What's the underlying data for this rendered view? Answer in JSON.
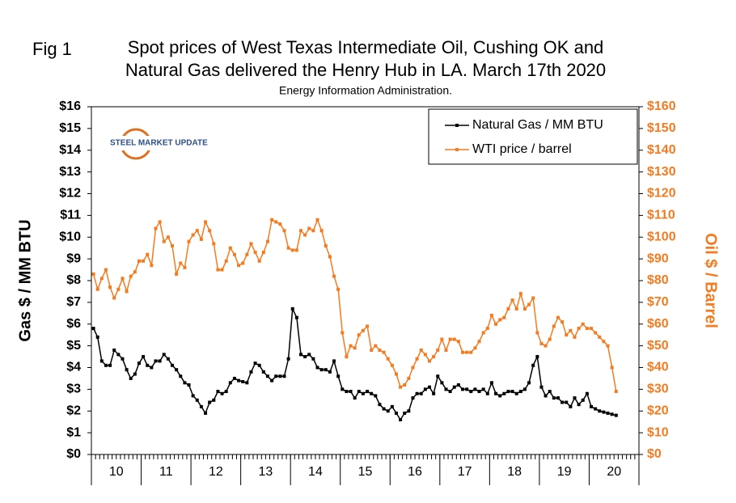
{
  "chart_data": {
    "type": "line",
    "figure_label": "Fig 1",
    "title": [
      "Spot prices of West Texas Intermediate Oil, Cushing OK and",
      "Natural Gas delivered the Henry Hub in LA. March 17th 2020"
    ],
    "subtitle": "Energy Information Administration.",
    "logo": "STEEL MARKET UPDATE",
    "y_label": "Gas $ / MM BTU",
    "y2_label": "Oil $ / Barrel",
    "categories": [
      null,
      null,
      null,
      null,
      null,
      null,
      "10",
      null,
      null,
      null,
      null,
      null,
      null,
      null,
      null,
      null,
      null,
      null,
      "11",
      null,
      null,
      null,
      null,
      null,
      null,
      null,
      null,
      null,
      null,
      null,
      "12",
      null,
      null,
      null,
      null,
      null,
      null,
      null,
      null,
      null,
      null,
      null,
      "13",
      null,
      null,
      null,
      null,
      null,
      null,
      null,
      null,
      null,
      null,
      null,
      "14",
      null,
      null,
      null,
      null,
      null,
      null,
      null,
      null,
      null,
      null,
      null,
      "15",
      null,
      null,
      null,
      null,
      null,
      null,
      null,
      null,
      null,
      null,
      null,
      "16",
      null,
      null,
      null,
      null,
      null,
      null,
      null,
      null,
      null,
      null,
      null,
      "17",
      null,
      null,
      null,
      null,
      null,
      null,
      null,
      null,
      null,
      null,
      null,
      "18",
      null,
      null,
      null,
      null,
      null,
      null,
      null,
      null,
      null,
      null,
      null,
      "19",
      null,
      null,
      null,
      null,
      null,
      null,
      null,
      null,
      null,
      null,
      null,
      "20"
    ],
    "series": [
      {
        "name": "Natural Gas / MM BTU",
        "color": "#000000",
        "axis": "y",
        "values": [
          5.8,
          5.4,
          4.3,
          4.1,
          4.1,
          4.8,
          4.6,
          4.4,
          3.9,
          3.5,
          3.7,
          4.2,
          4.5,
          4.1,
          4.0,
          4.3,
          4.3,
          4.6,
          4.4,
          4.1,
          3.9,
          3.6,
          3.3,
          3.2,
          2.7,
          2.5,
          2.2,
          1.9,
          2.4,
          2.5,
          2.9,
          2.8,
          2.9,
          3.3,
          3.5,
          3.4,
          3.35,
          3.3,
          3.8,
          4.2,
          4.1,
          3.8,
          3.6,
          3.4,
          3.6,
          3.6,
          3.6,
          4.4,
          6.7,
          6.3,
          4.6,
          4.5,
          4.6,
          4.4,
          4.0,
          3.9,
          3.9,
          3.8,
          4.3,
          3.6,
          3.0,
          2.9,
          2.9,
          2.6,
          2.9,
          2.8,
          2.9,
          2.8,
          2.7,
          2.3,
          2.1,
          2.0,
          2.2,
          1.9,
          1.6,
          1.9,
          2.0,
          2.6,
          2.8,
          2.8,
          3.0,
          3.1,
          2.8,
          3.6,
          3.3,
          3.0,
          2.9,
          3.1,
          3.2,
          3.0,
          3.0,
          2.9,
          3.0,
          2.9,
          3.0,
          2.8,
          3.3,
          2.8,
          2.7,
          2.8,
          2.9,
          2.9,
          2.8,
          2.9,
          3.0,
          3.3,
          4.1,
          4.5,
          3.1,
          2.7,
          2.9,
          2.6,
          2.6,
          2.4,
          2.4,
          2.2,
          2.6,
          2.3,
          2.5,
          2.8,
          2.2,
          2.1,
          2.0,
          1.95,
          1.9,
          1.85,
          1.8
        ]
      },
      {
        "name": "WTI price / barrel",
        "color": "#f47b20",
        "axis": "y2",
        "values": [
          83,
          76,
          81,
          85,
          77,
          72,
          76,
          81,
          75,
          82,
          84,
          89,
          89,
          92,
          87,
          104,
          107,
          98,
          100,
          96,
          83,
          88,
          86,
          98,
          101,
          103,
          99,
          107,
          103,
          97,
          85,
          85,
          89,
          95,
          92,
          87,
          88,
          92,
          97,
          93,
          89,
          93,
          98,
          108,
          107,
          106,
          103,
          95,
          94,
          94,
          103,
          101,
          104,
          103,
          108,
          103,
          96,
          91,
          82,
          76,
          56,
          45,
          50,
          49,
          55,
          57,
          59,
          48,
          50,
          48,
          47,
          44,
          41,
          37,
          31,
          32,
          35,
          40,
          44,
          48,
          46,
          43,
          45,
          48,
          53,
          48,
          53,
          53,
          52,
          47,
          47,
          47,
          49,
          52,
          56,
          58,
          64,
          60,
          62,
          63,
          67,
          71,
          67,
          74,
          67,
          69,
          72,
          56,
          51,
          50,
          53,
          59,
          63,
          61,
          55,
          57,
          54,
          58,
          60,
          58,
          58,
          56,
          54,
          52,
          50,
          40,
          29
        ]
      }
    ],
    "ylim": [
      0,
      16
    ],
    "yticks": [
      {
        "value": 0,
        "label": "$0"
      },
      {
        "value": 1,
        "label": "$1"
      },
      {
        "value": 2,
        "label": "$2"
      },
      {
        "value": 3,
        "label": "$3"
      },
      {
        "value": 4,
        "label": "$4"
      },
      {
        "value": 5,
        "label": "$5"
      },
      {
        "value": 6,
        "label": "$6"
      },
      {
        "value": 7,
        "label": "$7"
      },
      {
        "value": 8,
        "label": "$8"
      },
      {
        "value": 9,
        "label": "$9"
      },
      {
        "value": 10,
        "label": "$10"
      },
      {
        "value": 11,
        "label": "$11"
      },
      {
        "value": 12,
        "label": "$12"
      },
      {
        "value": 13,
        "label": "$13"
      },
      {
        "value": 14,
        "label": "$14"
      },
      {
        "value": 15,
        "label": "$15"
      },
      {
        "value": 16,
        "label": "$16"
      }
    ],
    "y2lim": [
      0,
      160
    ],
    "y2ticks": [
      {
        "value": 0,
        "label": "$0"
      },
      {
        "value": 10,
        "label": "$10"
      },
      {
        "value": 20,
        "label": "$20"
      },
      {
        "value": 30,
        "label": "$30"
      },
      {
        "value": 40,
        "label": "$40"
      },
      {
        "value": 50,
        "label": "$50"
      },
      {
        "value": 60,
        "label": "$60"
      },
      {
        "value": 70,
        "label": "$70"
      },
      {
        "value": 80,
        "label": "$80"
      },
      {
        "value": 90,
        "label": "$90"
      },
      {
        "value": 100,
        "label": "$100"
      },
      {
        "value": 110,
        "label": "$110"
      },
      {
        "value": 120,
        "label": "$120"
      },
      {
        "value": 130,
        "label": "$130"
      },
      {
        "value": 140,
        "label": "$140"
      },
      {
        "value": 150,
        "label": "$150"
      },
      {
        "value": 160,
        "label": "$160"
      }
    ],
    "grid": false,
    "legend": "top-right"
  }
}
